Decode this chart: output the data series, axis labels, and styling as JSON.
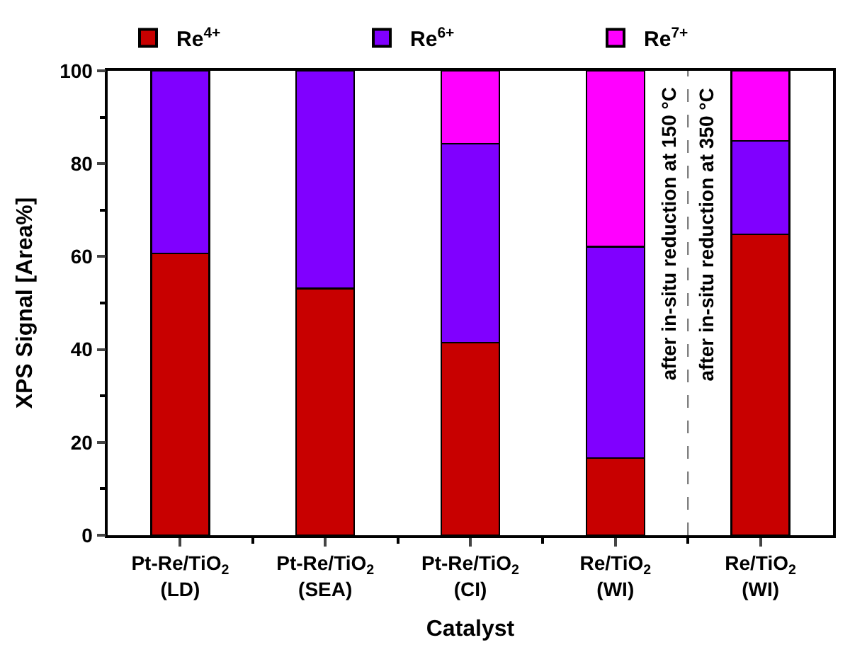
{
  "chart_data": {
    "type": "bar",
    "stacked": true,
    "xlabel": "Catalyst",
    "ylabel": "XPS Signal [Area%]",
    "categories": [
      "Pt-Re/TiO$_{2}$\n(LD)",
      "Pt-Re/TiO$_{2}$\n(SEA)",
      "Pt-Re/TiO$_{2}$\n(CI)",
      "Re/TiO$_{2}$\n(WI)",
      "Re/TiO$_{2}$\n(WI)"
    ],
    "series": [
      {
        "name": "Re$^{4+}$",
        "color": "#c80000",
        "values": [
          60.7,
          53.1,
          41.5,
          16.6,
          64.8
        ]
      },
      {
        "name": "Re$^{6+}$",
        "color": "#8000ff",
        "values": [
          39.3,
          46.9,
          42.8,
          45.5,
          20.1
        ]
      },
      {
        "name": "Re$^{7+}$",
        "color": "#ff00ff",
        "values": [
          null,
          null,
          15.7,
          37.9,
          15.1
        ]
      }
    ],
    "ylim": [
      0,
      100
    ],
    "yticks": [
      0,
      20,
      40,
      60,
      80,
      100
    ],
    "legend": "top",
    "annotations": [
      "after in-situ reduction at 150 °C",
      "after in-situ reduction at 350 °C"
    ]
  }
}
